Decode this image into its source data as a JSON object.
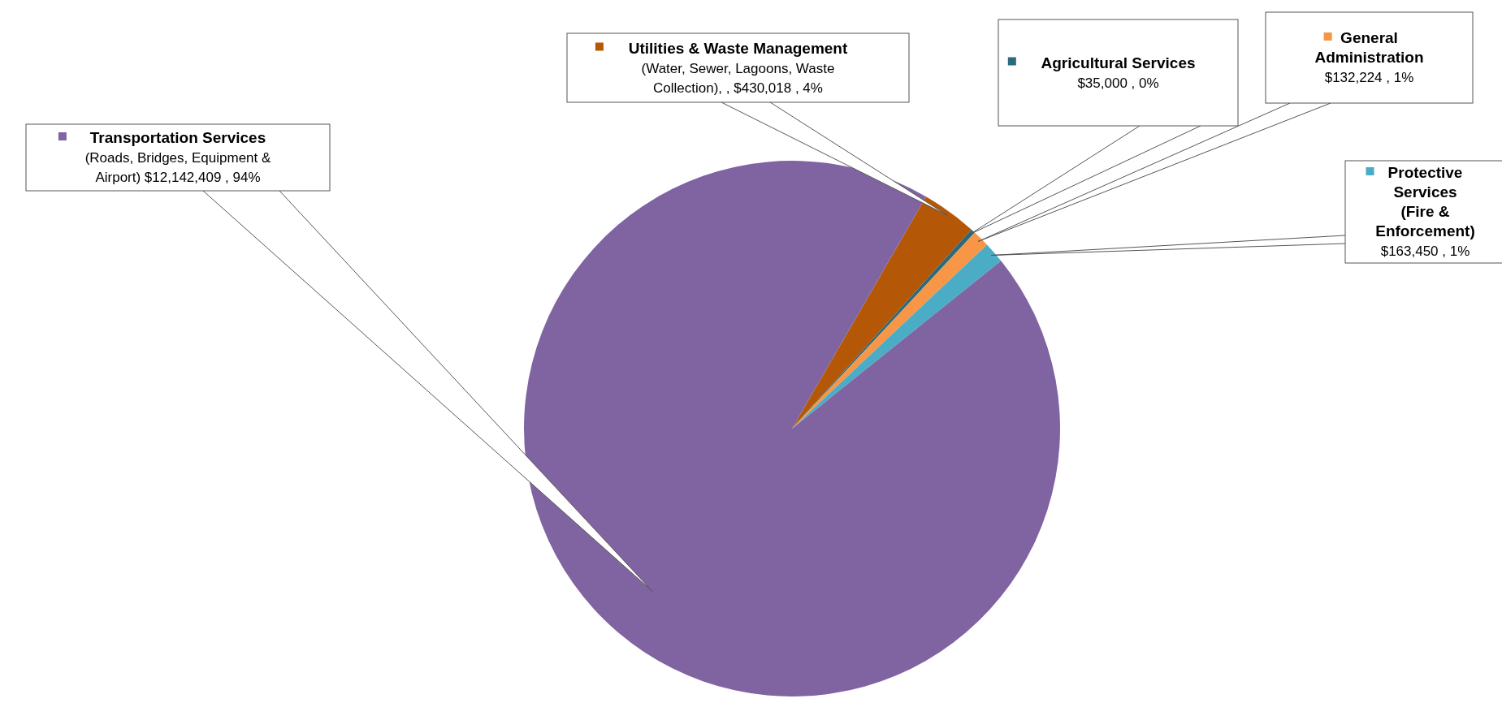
{
  "chart_data": {
    "type": "pie",
    "legend": "top",
    "categories": [
      "Utilities & Waste Management (Water, Sewer, Lagoons, Waste Collection)",
      "Agricultural Services",
      "General Administration",
      "Protective Services (Fire & Enforcement)",
      "Transportation Services (Roads, Bridges, Equipment & Airport)"
    ],
    "values": [
      430018,
      35000,
      132224,
      163450,
      12142409
    ],
    "colors": [
      "#b45808",
      "#2a6a7a",
      "#f79646",
      "#4bacc6",
      "#8064a2"
    ],
    "value_labels": [
      ", ,  $430,018 , 4%",
      "$35,000 , 0%",
      "$132,224 , 1%",
      "$163,450 , 1%",
      "$12,142,409 , 94%"
    ]
  }
}
